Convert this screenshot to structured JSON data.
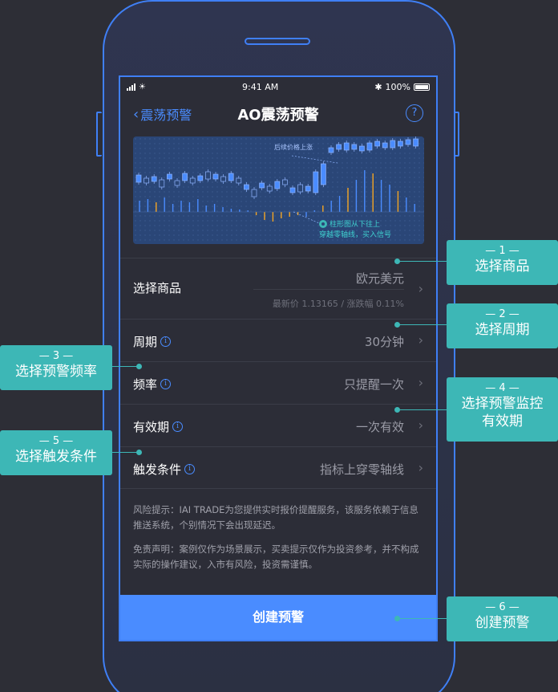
{
  "status": {
    "time": "9:41 AM",
    "battery": "100%"
  },
  "nav": {
    "back_label": "震荡预警",
    "title": "AO震荡预警",
    "help_icon": "?"
  },
  "chart_annotations": {
    "rise_label": "后续价格上涨",
    "signal_line1": "柱形图从下往上",
    "signal_line2": "穿越零轴线，买入信号"
  },
  "form": {
    "product": {
      "label": "选择商品",
      "value": "欧元美元",
      "sub": "最新价 1.13165 / 涨跌幅 0.11%"
    },
    "period": {
      "label": "周期",
      "value": "30分钟"
    },
    "frequency": {
      "label": "频率",
      "value": "只提醒一次"
    },
    "validity": {
      "label": "有效期",
      "value": "一次有效"
    },
    "condition": {
      "label": "触发条件",
      "value": "指标上穿零轴线"
    }
  },
  "notes": {
    "risk": "风险提示：IAI TRADE为您提供实时报价提醒服务，该服务依赖于信息推送系统，个别情况下会出现延迟。",
    "disclaimer": "免责声明：案例仅作为场景展示，买卖提示仅作为投资参考，并不构成实际的操作建议，入市有风险，投资需谨慎。"
  },
  "create_button": "创建预警",
  "callouts": {
    "c1": {
      "num": "— 1 —",
      "text": "选择商品"
    },
    "c2": {
      "num": "— 2 —",
      "text": "选择周期"
    },
    "c3": {
      "num": "— 3 —",
      "text": "选择预警频率"
    },
    "c4": {
      "num": "— 4 —",
      "text1": "选择预警监控",
      "text2": "有效期"
    },
    "c5": {
      "num": "— 5 —",
      "text": "选择触发条件"
    },
    "c6": {
      "num": "— 6 —",
      "text": "创建预警"
    }
  },
  "colors": {
    "accent": "#4a8cff",
    "callout": "#3db7b6",
    "bg": "#2d2e36",
    "bar_up": "#4a8cff",
    "bar_down": "#f5a623"
  }
}
